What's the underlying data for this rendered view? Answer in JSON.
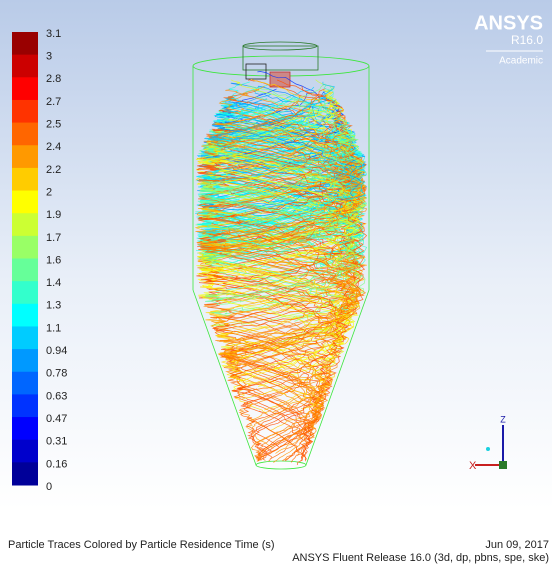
{
  "header": {
    "logo": "ANSYS",
    "version": "R16.0",
    "license": "Academic"
  },
  "colorbar": {
    "labels": [
      "3.1",
      "3",
      "2.8",
      "2.7",
      "2.5",
      "2.4",
      "2.2",
      "2",
      "1.9",
      "1.7",
      "1.6",
      "1.4",
      "1.3",
      "1.1",
      "0.94",
      "0.78",
      "0.63",
      "0.47",
      "0.31",
      "0.16",
      "0"
    ]
  },
  "triad": {
    "x": "X",
    "z": "Z"
  },
  "footer": {
    "title": "Particle Traces Colored by Particle Residence Time (s)",
    "date": "Jun 09, 2017",
    "release": "ANSYS Fluent Release 16.0 (3d, dp, pbns, spe, ske)"
  }
}
